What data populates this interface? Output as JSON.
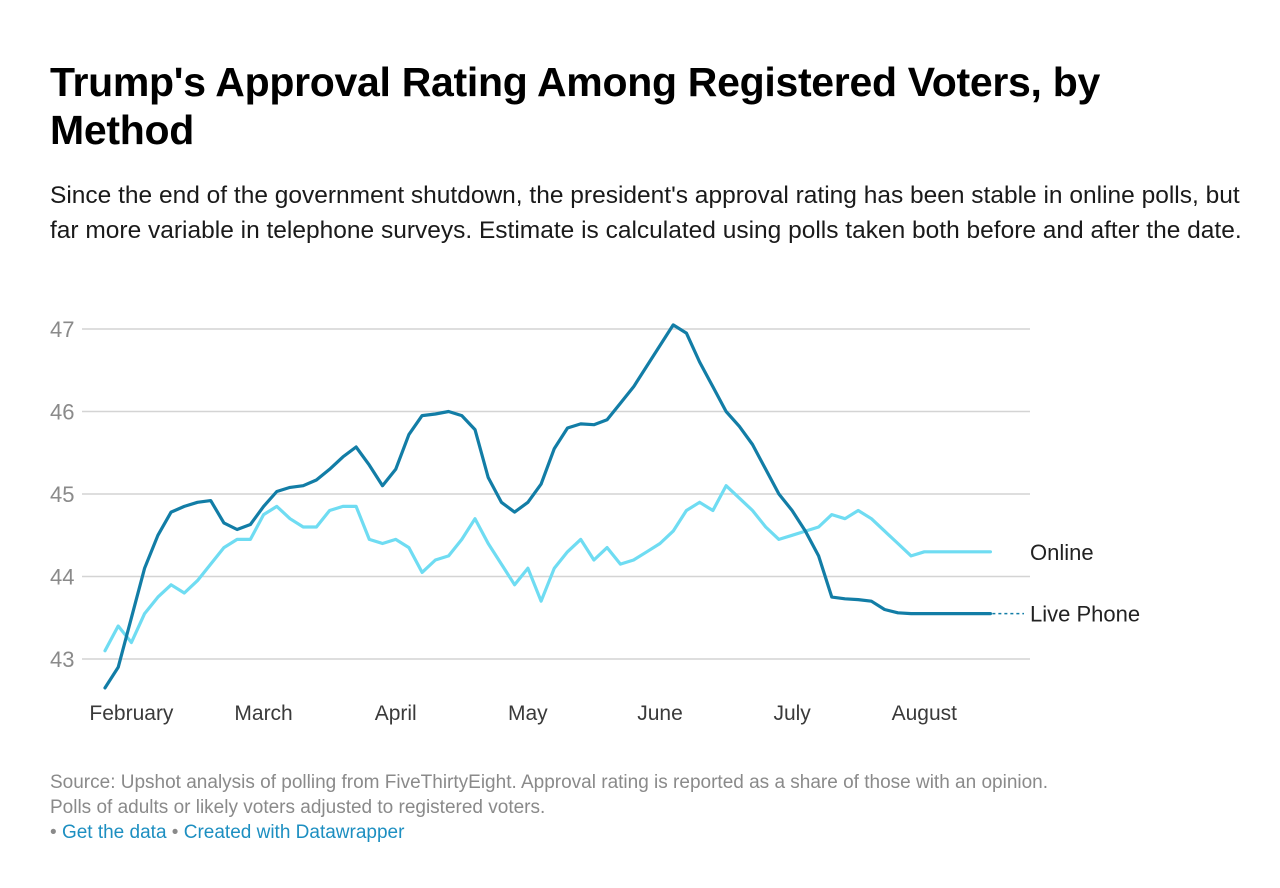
{
  "title": "Trump's Approval Rating Among Registered Voters, by Method",
  "subtitle": "Since the end of the government shutdown, the president's approval rating has been stable in online polls, but far more variable in telephone surveys. Estimate is calculated using polls taken both before and after the date.",
  "source_line1": "Source: Upshot analysis of polling from FiveThirtyEight. Approval rating is reported as a share of those with an opinion.",
  "source_line2": "Polls of adults or likely voters adjusted to registered voters.",
  "links": {
    "bullet": "•",
    "get_data": "Get the data",
    "created_with": "Created with Datawrapper"
  },
  "colors": {
    "live_phone": "#127da6",
    "online": "#6fdcf2",
    "grid": "#d4d4d4"
  },
  "chart_data": {
    "type": "line",
    "title": "Trump's Approval Rating Among Registered Voters, by Method",
    "xlabel": "",
    "ylabel": "",
    "x_unit": "month",
    "x_ticks": [
      "February",
      "March",
      "April",
      "May",
      "June",
      "July",
      "August"
    ],
    "y_ticks": [
      43,
      44,
      45,
      46,
      47
    ],
    "xlim": [
      0,
      7.0
    ],
    "ylim": [
      42.6,
      47.2
    ],
    "grid": true,
    "legend": "direct labels at line ends (right)",
    "series": [
      {
        "name": "Live Phone",
        "color": "#127da6",
        "x": [
          0.0,
          0.1,
          0.2,
          0.3,
          0.4,
          0.5,
          0.6,
          0.7,
          0.8,
          0.9,
          1.0,
          1.1,
          1.2,
          1.3,
          1.4,
          1.5,
          1.6,
          1.7,
          1.8,
          1.9,
          2.0,
          2.1,
          2.2,
          2.3,
          2.4,
          2.5,
          2.6,
          2.7,
          2.8,
          2.9,
          3.0,
          3.1,
          3.2,
          3.3,
          3.4,
          3.5,
          3.6,
          3.7,
          3.8,
          3.9,
          4.0,
          4.1,
          4.2,
          4.3,
          4.4,
          4.5,
          4.6,
          4.7,
          4.8,
          4.9,
          5.0,
          5.1,
          5.2,
          5.3,
          5.4,
          5.5,
          5.6,
          5.7,
          5.8,
          5.9,
          6.0,
          6.1,
          6.2,
          6.3,
          6.4,
          6.5,
          6.6,
          6.7
        ],
        "values": [
          42.65,
          42.9,
          43.5,
          44.1,
          44.5,
          44.78,
          44.85,
          44.9,
          44.92,
          44.65,
          44.57,
          44.63,
          44.85,
          45.03,
          45.08,
          45.1,
          45.17,
          45.3,
          45.45,
          45.57,
          45.35,
          45.1,
          45.3,
          45.72,
          45.95,
          45.97,
          46.0,
          45.95,
          45.78,
          45.2,
          44.9,
          44.78,
          44.9,
          45.12,
          45.55,
          45.8,
          45.85,
          45.84,
          45.9,
          46.1,
          46.3,
          46.55,
          46.8,
          47.05,
          46.95,
          46.6,
          46.3,
          46.0,
          45.82,
          45.6,
          45.3,
          45.0,
          44.8,
          44.55,
          44.25,
          43.75,
          43.73,
          43.72,
          43.7,
          43.6,
          43.56,
          43.55,
          43.55,
          43.55,
          43.55,
          43.55,
          43.55,
          43.55
        ]
      },
      {
        "name": "Online",
        "color": "#6fdcf2",
        "x": [
          0.0,
          0.1,
          0.2,
          0.3,
          0.4,
          0.5,
          0.6,
          0.7,
          0.8,
          0.9,
          1.0,
          1.1,
          1.2,
          1.3,
          1.4,
          1.5,
          1.6,
          1.7,
          1.8,
          1.9,
          2.0,
          2.1,
          2.2,
          2.3,
          2.4,
          2.5,
          2.6,
          2.7,
          2.8,
          2.9,
          3.0,
          3.1,
          3.2,
          3.3,
          3.4,
          3.5,
          3.6,
          3.7,
          3.8,
          3.9,
          4.0,
          4.1,
          4.2,
          4.3,
          4.4,
          4.5,
          4.6,
          4.7,
          4.8,
          4.9,
          5.0,
          5.1,
          5.2,
          5.3,
          5.4,
          5.5,
          5.6,
          5.7,
          5.8,
          5.9,
          6.0,
          6.1,
          6.2,
          6.3,
          6.4,
          6.5,
          6.6,
          6.7
        ],
        "values": [
          43.1,
          43.4,
          43.2,
          43.55,
          43.75,
          43.9,
          43.8,
          43.95,
          44.15,
          44.35,
          44.45,
          44.45,
          44.75,
          44.85,
          44.7,
          44.6,
          44.6,
          44.8,
          44.85,
          44.85,
          44.45,
          44.4,
          44.45,
          44.35,
          44.05,
          44.2,
          44.25,
          44.45,
          44.7,
          44.4,
          44.15,
          43.9,
          44.1,
          43.7,
          44.1,
          44.3,
          44.45,
          44.2,
          44.35,
          44.15,
          44.2,
          44.3,
          44.4,
          44.55,
          44.8,
          44.9,
          44.8,
          45.1,
          44.95,
          44.8,
          44.6,
          44.45,
          44.5,
          44.55,
          44.6,
          44.75,
          44.7,
          44.8,
          44.7,
          44.55,
          44.4,
          44.25,
          44.3,
          44.3,
          44.3,
          44.3,
          44.3,
          44.3
        ]
      }
    ]
  }
}
